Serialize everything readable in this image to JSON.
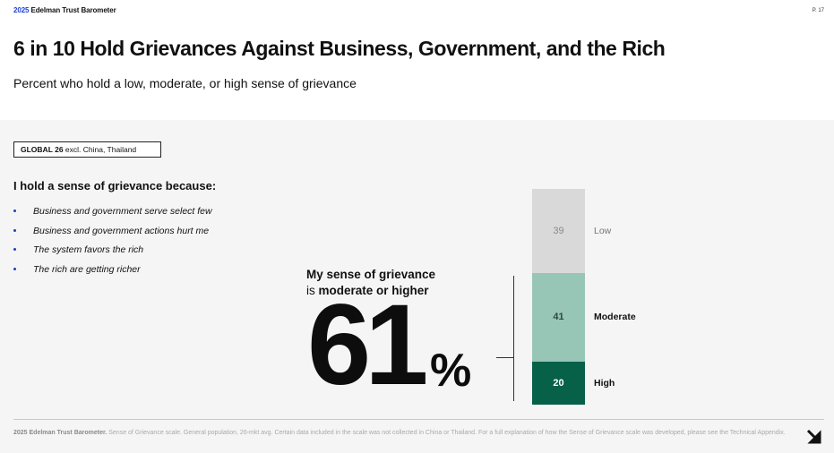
{
  "brand": {
    "year": "2025",
    "name": "Edelman Trust Barometer"
  },
  "page": "P. 17",
  "title": "6 in 10 Hold Grievances Against Business, Government, and the Rich",
  "subtitle": "Percent who hold a low, moderate, or high sense of grievance",
  "scope": {
    "label": "GLOBAL 26",
    "detail": "excl. China, Thailand"
  },
  "grievance": {
    "heading": "I hold a sense of grievance because:",
    "reasons": [
      "Business and government serve select few",
      "Business and government actions hurt me",
      "The system favors the rich",
      "The rich are getting richer"
    ]
  },
  "headline": {
    "line1": "My sense of grievance",
    "line2_prefix": "is ",
    "line2_bold": "moderate or higher"
  },
  "big_number": "61",
  "big_suffix": "%",
  "chart_data": {
    "type": "bar",
    "stacked": true,
    "title": "Sense of grievance",
    "series": [
      {
        "name": "Low",
        "value": 39,
        "color": "#d9d9d9",
        "text_color": "#8a8a8a",
        "label_color": "#777777",
        "label_weight": "normal"
      },
      {
        "name": "Moderate",
        "value": 41,
        "color": "#97c5b6",
        "text_color": "#2c4a40",
        "label_color": "#111111",
        "label_weight": "bold"
      },
      {
        "name": "High",
        "value": 20,
        "color": "#076149",
        "text_color": "#ffffff",
        "label_color": "#111111",
        "label_weight": "bold"
      }
    ],
    "total": 100
  },
  "footnote": {
    "source": "2025 Edelman Trust Barometer.",
    "text": "Sense of Grievance scale. General population, 26-mkt avg. Certain data included in the scale was not collected in China or Thailand. For a full explanation of how the Sense of Grievance scale was developed, please see the Technical Appendix."
  },
  "icons": {
    "next": "arrow-down-right-icon"
  }
}
